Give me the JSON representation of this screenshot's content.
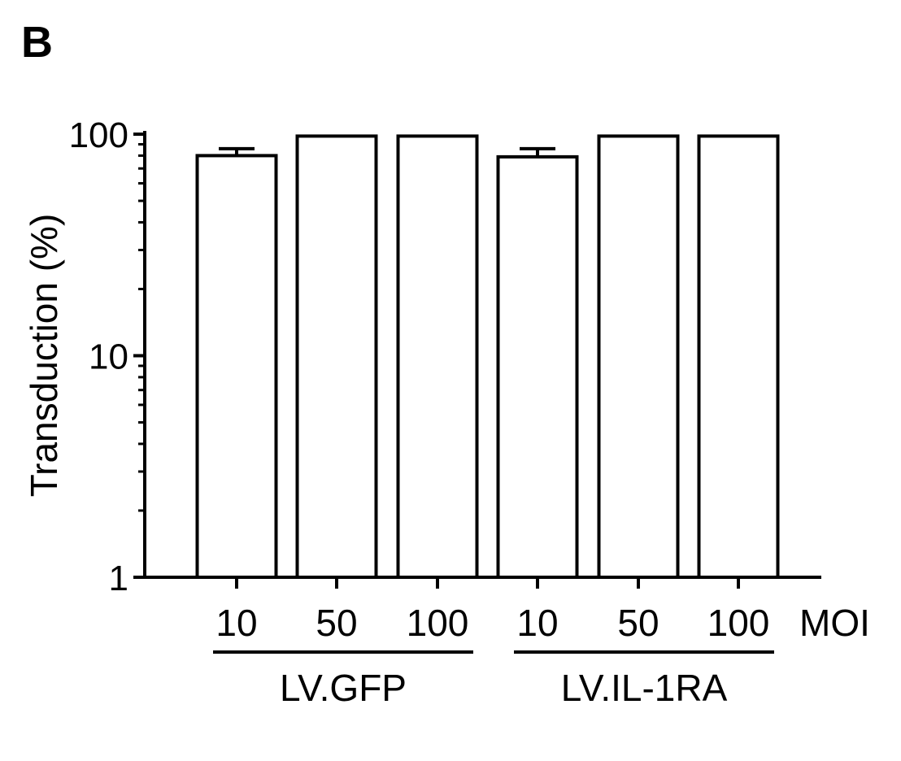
{
  "panel_label": "B",
  "chart_data": {
    "type": "bar",
    "scale": "log",
    "ylabel": "Transduction (%)",
    "ylim": [
      1,
      100
    ],
    "y_ticks": [
      "1",
      "10",
      "100"
    ],
    "x_unit_label": "MOI",
    "categories": [
      "10",
      "50",
      "100",
      "10",
      "50",
      "100"
    ],
    "groups": [
      {
        "label": "LV.GFP",
        "categories": [
          "10",
          "50",
          "100"
        ]
      },
      {
        "label": "LV.IL-1RA",
        "categories": [
          "10",
          "50",
          "100"
        ]
      }
    ],
    "values": [
      80,
      98,
      98,
      79,
      98,
      98
    ],
    "errors": [
      6,
      0,
      0,
      7,
      0,
      0
    ],
    "bar_fill": "#ffffff",
    "bar_stroke": "#000000",
    "grid": false
  }
}
